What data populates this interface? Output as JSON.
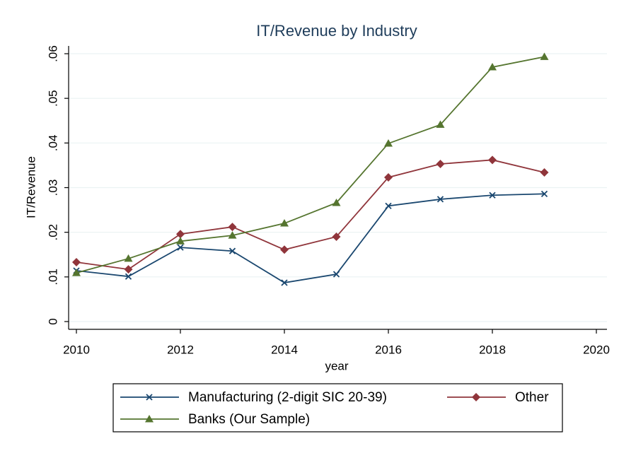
{
  "chart_data": {
    "type": "line",
    "title": "IT/Revenue by Industry",
    "xlabel": "year",
    "ylabel": "IT/Revenue",
    "x": [
      2010,
      2011,
      2012,
      2013,
      2014,
      2015,
      2016,
      2017,
      2018,
      2019
    ],
    "series": [
      {
        "name": "Manufacturing (2-digit SIC 20-39)",
        "color": "#1a476f",
        "marker": "x",
        "values": [
          0.0114,
          0.0101,
          0.0166,
          0.0158,
          0.0087,
          0.0106,
          0.0259,
          0.0274,
          0.0283,
          0.0286
        ]
      },
      {
        "name": "Other",
        "color": "#90353b",
        "marker": "diamond",
        "values": [
          0.0133,
          0.0117,
          0.0196,
          0.0212,
          0.0161,
          0.019,
          0.0323,
          0.0353,
          0.0362,
          0.0334
        ]
      },
      {
        "name": "Banks (Our Sample)",
        "color": "#55752f",
        "marker": "triangle",
        "values": [
          0.0109,
          0.0141,
          0.018,
          0.0193,
          0.022,
          0.0266,
          0.0399,
          0.0441,
          0.057,
          0.0593
        ]
      }
    ],
    "xlim": [
      2010,
      2020
    ],
    "xticks": [
      2010,
      2012,
      2014,
      2016,
      2018,
      2020
    ],
    "ylim": [
      0,
      0.06
    ],
    "yticks": [
      0,
      {
        "value": 0.01,
        "label": ".01"
      },
      {
        "value": 0.02,
        "label": ".02"
      },
      {
        "value": 0.03,
        "label": ".03"
      },
      {
        "value": 0.04,
        "label": ".04"
      },
      {
        "value": 0.05,
        "label": ".05"
      },
      {
        "value": 0.06,
        "label": ".06"
      }
    ],
    "grid": true,
    "legend": "bottom"
  }
}
